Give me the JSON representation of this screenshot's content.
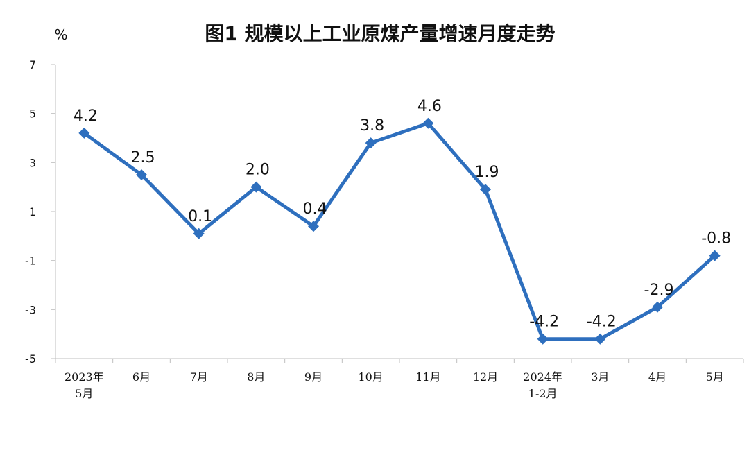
{
  "chart_data": {
    "type": "line",
    "title": "图1  规模以上工业原煤产量增速月度走势",
    "unit_label": "%",
    "categories": [
      [
        "2023年",
        "5月"
      ],
      [
        "6月"
      ],
      [
        "7月"
      ],
      [
        "8月"
      ],
      [
        "9月"
      ],
      [
        "10月"
      ],
      [
        "11月"
      ],
      [
        "12月"
      ],
      [
        "2024年",
        "1-2月"
      ],
      [
        "3月"
      ],
      [
        "4月"
      ],
      [
        "5月"
      ]
    ],
    "series": [
      {
        "values": [
          4.2,
          2.5,
          0.1,
          2.0,
          0.4,
          3.8,
          4.6,
          1.9,
          -4.2,
          -4.2,
          -2.9,
          -0.8
        ],
        "data_labels": [
          "4.2",
          "2.5",
          "0.1",
          "2.0",
          "0.4",
          "3.8",
          "4.6",
          "1.9",
          "-4.2",
          "-4.2",
          "-2.9",
          "-0.8"
        ],
        "color": "#2E6FBE"
      }
    ],
    "yticks": [
      7,
      5,
      3,
      1,
      -1,
      -3,
      -5
    ],
    "ylim": [
      -5,
      7
    ],
    "grid": false,
    "legend": "none",
    "colors": {
      "line": "#2E6FBE",
      "axis": "#BFBFBF",
      "text": "#111111"
    }
  }
}
